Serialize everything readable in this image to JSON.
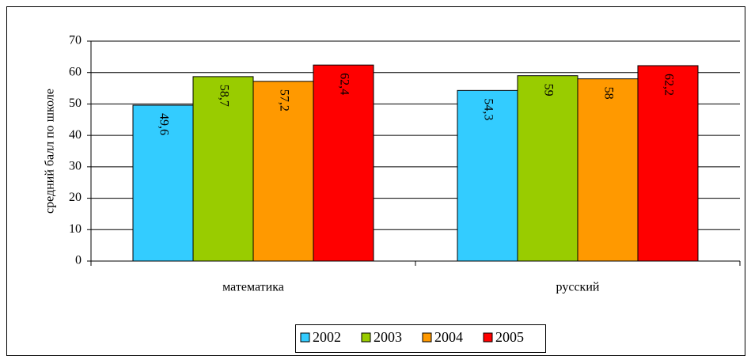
{
  "chart_data": {
    "type": "bar",
    "ylabel": "средний балл по школе",
    "categories": [
      "математика",
      "русский"
    ],
    "series": [
      {
        "name": "2002",
        "color": "#33ccff",
        "values": [
          49.6,
          54.3
        ],
        "value_labels": [
          "49,6",
          "54,3"
        ]
      },
      {
        "name": "2003",
        "color": "#99cc00",
        "values": [
          58.7,
          59
        ],
        "value_labels": [
          "58,7",
          "59"
        ]
      },
      {
        "name": "2004",
        "color": "#ff9900",
        "values": [
          57.2,
          58
        ],
        "value_labels": [
          "57,2",
          "58"
        ]
      },
      {
        "name": "2005",
        "color": "#ff0000",
        "values": [
          62.4,
          62.2
        ],
        "value_labels": [
          "62,4",
          "62,2"
        ]
      }
    ],
    "ylim": [
      0,
      70
    ],
    "yticks": [
      0,
      10,
      20,
      30,
      40,
      50,
      60,
      70
    ],
    "grid": true,
    "legend": "bottom"
  }
}
